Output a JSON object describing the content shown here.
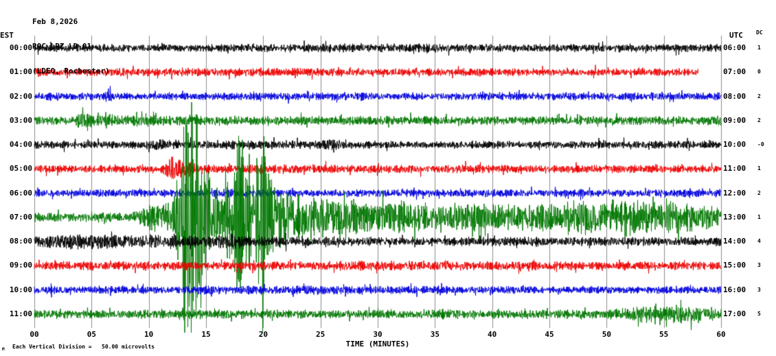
{
  "header": {
    "date": "Feb 8,2026",
    "station": "ROC LPZ LD 01",
    "network": "(LDEO, Rochester)"
  },
  "axes": {
    "left_label": "EST",
    "right_label": "UTC",
    "dc_label": "DC",
    "x_ticks": [
      "00",
      "05",
      "10",
      "15",
      "20",
      "25",
      "30",
      "35",
      "40",
      "45",
      "50",
      "55",
      "60"
    ],
    "x_title": "TIME (MINUTES)",
    "scale_note": "Each Vertical Division =   50.00 microvolts",
    "corner_glyph": "M"
  },
  "colors": {
    "black": "#000000",
    "red": "#ee0000",
    "blue": "#0000dd",
    "green": "#007700",
    "grid": "#8c8c8c"
  },
  "chart_data": {
    "type": "line",
    "title": "ROC LPZ LD 01 helicorder, Feb 8,2026 (LDEO, Rochester)",
    "xlabel": "TIME (MINUTES)",
    "x_range_minutes": [
      0,
      60
    ],
    "minutes_per_division": 5,
    "microvolts_per_division": 50.0,
    "amplitude_units": "microvolts (envelope of trace, piecewise-linear [minute, uV])",
    "event_note": "Large seismic event onset on 07:00 EST (13:00 UTC) green trace near minute 13, clipping across adjacent rows, coda through end of hour",
    "rows": [
      {
        "est": "00:00",
        "utc": "06:00",
        "dc": "1",
        "color": "black",
        "end_minute": 60,
        "env": [
          [
            0,
            6
          ],
          [
            7,
            6
          ],
          [
            7.5,
            9
          ],
          [
            8.5,
            6
          ],
          [
            20,
            6
          ],
          [
            36,
            7
          ],
          [
            38,
            6
          ],
          [
            60,
            6
          ]
        ]
      },
      {
        "est": "01:00",
        "utc": "07:00",
        "dc": "0",
        "color": "red",
        "end_minute": 58,
        "env": [
          [
            0,
            6
          ],
          [
            25,
            7
          ],
          [
            26,
            6
          ],
          [
            58,
            6
          ]
        ]
      },
      {
        "est": "02:00",
        "utc": "08:00",
        "dc": "2",
        "color": "blue",
        "end_minute": 60,
        "env": [
          [
            0,
            6
          ],
          [
            6.2,
            6
          ],
          [
            6.6,
            22
          ],
          [
            7.0,
            6
          ],
          [
            60,
            6
          ]
        ]
      },
      {
        "est": "03:00",
        "utc": "09:00",
        "dc": "2",
        "color": "green",
        "end_minute": 60,
        "env": [
          [
            0,
            7
          ],
          [
            3.5,
            7
          ],
          [
            4.2,
            14
          ],
          [
            5.5,
            9
          ],
          [
            13,
            8
          ],
          [
            13.6,
            14
          ],
          [
            14.2,
            8
          ],
          [
            30,
            7
          ],
          [
            60,
            7
          ]
        ]
      },
      {
        "est": "04:00",
        "utc": "10:00",
        "dc": "-0",
        "color": "black",
        "end_minute": 60,
        "env": [
          [
            0,
            6
          ],
          [
            9.5,
            6
          ],
          [
            10.5,
            10
          ],
          [
            12,
            7
          ],
          [
            25,
            7
          ],
          [
            26,
            10
          ],
          [
            27.5,
            6
          ],
          [
            60,
            6
          ]
        ]
      },
      {
        "est": "05:00",
        "utc": "11:00",
        "dc": "1",
        "color": "red",
        "end_minute": 60,
        "env": [
          [
            0,
            6
          ],
          [
            11,
            6
          ],
          [
            12,
            20
          ],
          [
            13,
            14
          ],
          [
            14.5,
            7
          ],
          [
            60,
            6
          ]
        ]
      },
      {
        "est": "06:00",
        "utc": "12:00",
        "dc": "2",
        "color": "blue",
        "end_minute": 60,
        "env": [
          [
            0,
            6
          ],
          [
            17,
            6
          ],
          [
            18,
            8
          ],
          [
            19,
            6
          ],
          [
            60,
            6
          ]
        ]
      },
      {
        "est": "07:00",
        "utc": "13:00",
        "dc": "1",
        "color": "green",
        "end_minute": 60,
        "env": [
          [
            0,
            7
          ],
          [
            8,
            7
          ],
          [
            9,
            11
          ],
          [
            10,
            21
          ],
          [
            12,
            28
          ],
          [
            12.8,
            85
          ],
          [
            13.2,
            213
          ],
          [
            14.3,
            213
          ],
          [
            15.1,
            85
          ],
          [
            15.6,
            50
          ],
          [
            16.6,
            43
          ],
          [
            17.2,
            85
          ],
          [
            18,
            128
          ],
          [
            19,
            114
          ],
          [
            20,
            128
          ],
          [
            21,
            57
          ],
          [
            22,
            43
          ],
          [
            24,
            35
          ],
          [
            26,
            31
          ],
          [
            30,
            26
          ],
          [
            34,
            23
          ],
          [
            38,
            21
          ],
          [
            42,
            20
          ],
          [
            44,
            26
          ],
          [
            46,
            20
          ],
          [
            48,
            28
          ],
          [
            50,
            23
          ],
          [
            52,
            31
          ],
          [
            54,
            23
          ],
          [
            56,
            26
          ],
          [
            58,
            20
          ],
          [
            60,
            17
          ]
        ]
      },
      {
        "est": "08:00",
        "utc": "14:00",
        "dc": "4",
        "color": "black",
        "end_minute": 60,
        "env": [
          [
            0,
            11
          ],
          [
            4,
            13
          ],
          [
            8,
            11
          ],
          [
            12,
            10
          ],
          [
            16,
            9
          ],
          [
            17.5,
            13
          ],
          [
            19,
            9
          ],
          [
            22,
            8
          ],
          [
            30,
            7
          ],
          [
            40,
            7
          ],
          [
            50,
            7
          ],
          [
            60,
            7
          ]
        ]
      },
      {
        "est": "09:00",
        "utc": "15:00",
        "dc": "3",
        "color": "red",
        "end_minute": 60,
        "env": [
          [
            0,
            7
          ],
          [
            20,
            7
          ],
          [
            21,
            9
          ],
          [
            22,
            7
          ],
          [
            35,
            8
          ],
          [
            36,
            7
          ],
          [
            60,
            7
          ]
        ]
      },
      {
        "est": "10:00",
        "utc": "16:00",
        "dc": "3",
        "color": "blue",
        "end_minute": 60,
        "env": [
          [
            0,
            6
          ],
          [
            13,
            6
          ],
          [
            15,
            7
          ],
          [
            20,
            7
          ],
          [
            27,
            7
          ],
          [
            30,
            6
          ],
          [
            60,
            6
          ]
        ]
      },
      {
        "est": "11:00",
        "utc": "17:00",
        "dc": "5",
        "color": "green",
        "end_minute": 60,
        "env": [
          [
            0,
            7
          ],
          [
            13,
            7
          ],
          [
            14,
            10
          ],
          [
            15,
            7
          ],
          [
            35,
            7
          ],
          [
            36,
            8
          ],
          [
            50,
            7
          ],
          [
            52,
            11
          ],
          [
            54,
            14
          ],
          [
            56,
            13
          ],
          [
            57.5,
            16
          ],
          [
            59,
            11
          ],
          [
            60,
            8
          ]
        ]
      }
    ]
  }
}
